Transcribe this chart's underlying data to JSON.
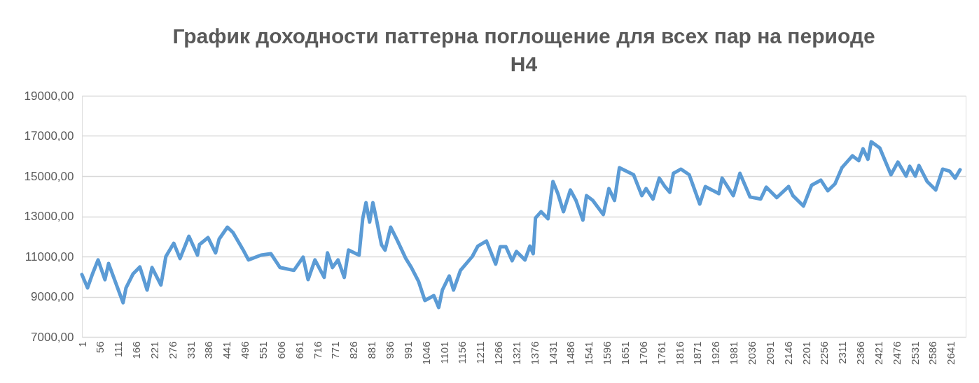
{
  "chart_data": {
    "type": "line",
    "title": "График доходности паттерна поглощение для всех пар на периоде H4",
    "x": [
      1,
      18,
      33,
      50,
      71,
      82,
      126,
      135,
      156,
      177,
      199,
      214,
      241,
      256,
      280,
      299,
      326,
      352,
      358,
      384,
      407,
      418,
      443,
      460,
      490,
      507,
      545,
      575,
      603,
      645,
      673,
      688,
      709,
      737,
      747,
      762,
      779,
      798,
      811,
      843,
      854,
      864,
      875,
      885,
      894,
      911,
      922,
      939,
      958,
      985,
      1002,
      1024,
      1043,
      1070,
      1085,
      1096,
      1117,
      1130,
      1151,
      1187,
      1204,
      1230,
      1258,
      1272,
      1289,
      1308,
      1321,
      1347,
      1362,
      1372,
      1379,
      1396,
      1417,
      1432,
      1447,
      1464,
      1485,
      1502,
      1523,
      1534,
      1553,
      1585,
      1602,
      1619,
      1634,
      1677,
      1702,
      1715,
      1736,
      1755,
      1772,
      1787,
      1798,
      1810,
      1821,
      1846,
      1878,
      1895,
      1936,
      1946,
      1980,
      2000,
      2031,
      2063,
      2080,
      2112,
      2148,
      2161,
      2193,
      2218,
      2246,
      2267,
      2289,
      2310,
      2342,
      2361,
      2374,
      2389,
      2399,
      2425,
      2459,
      2480,
      2505,
      2516,
      2533,
      2544,
      2569,
      2595,
      2616,
      2637,
      2654,
      2669
    ],
    "series": [
      {
        "color": "#5b9bd5",
        "values": [
          10100,
          9440,
          10130,
          10830,
          9850,
          10650,
          8700,
          9440,
          10130,
          10480,
          9330,
          10450,
          9580,
          11000,
          11660,
          10900,
          12010,
          11070,
          11590,
          11940,
          11180,
          11870,
          12460,
          12190,
          11350,
          10830,
          11070,
          11140,
          10450,
          10310,
          10970,
          9850,
          10830,
          9960,
          11180,
          10450,
          10830,
          9960,
          11320,
          11070,
          12880,
          13680,
          12710,
          13680,
          12990,
          11590,
          11320,
          12460,
          11840,
          10900,
          10450,
          9750,
          8810,
          9050,
          8460,
          9330,
          10030,
          9330,
          10310,
          11000,
          11520,
          11770,
          10620,
          11490,
          11490,
          10790,
          11250,
          10830,
          11520,
          11140,
          12920,
          13230,
          12880,
          14730,
          14130,
          13230,
          14310,
          13790,
          12810,
          14030,
          13790,
          13090,
          14380,
          13790,
          15420,
          15070,
          14030,
          14380,
          13860,
          14900,
          14480,
          14200,
          15140,
          15250,
          15350,
          15070,
          13610,
          14480,
          14130,
          14900,
          14030,
          15140,
          13960,
          13860,
          14450,
          13930,
          14480,
          14030,
          13510,
          14550,
          14800,
          14270,
          14620,
          15420,
          16010,
          15770,
          16360,
          15840,
          16710,
          16400,
          15070,
          15700,
          15000,
          15490,
          15000,
          15530,
          14730,
          14310,
          15350,
          15250,
          14900,
          15320
        ]
      }
    ],
    "xlim": [
      1,
      2686
    ],
    "xticks": [
      1,
      56,
      111,
      166,
      221,
      276,
      331,
      386,
      441,
      496,
      551,
      606,
      661,
      716,
      771,
      826,
      881,
      936,
      991,
      1046,
      1101,
      1156,
      1211,
      1266,
      1321,
      1376,
      1431,
      1486,
      1541,
      1596,
      1651,
      1706,
      1761,
      1816,
      1871,
      1926,
      1981,
      2036,
      2091,
      2146,
      2201,
      2256,
      2311,
      2366,
      2421,
      2476,
      2531,
      2586,
      2641
    ],
    "ylim": [
      7000,
      19000
    ],
    "yticks": [
      {
        "value": 7000,
        "label": "7000,00"
      },
      {
        "value": 9000,
        "label": "9000,00"
      },
      {
        "value": 11000,
        "label": "11000,00"
      },
      {
        "value": 13000,
        "label": "13000,00"
      },
      {
        "value": 15000,
        "label": "15000,00"
      },
      {
        "value": 17000,
        "label": "17000,00"
      },
      {
        "value": 19000,
        "label": "19000,00"
      }
    ],
    "grid": "y",
    "marker": "none",
    "line_style": "solid"
  }
}
